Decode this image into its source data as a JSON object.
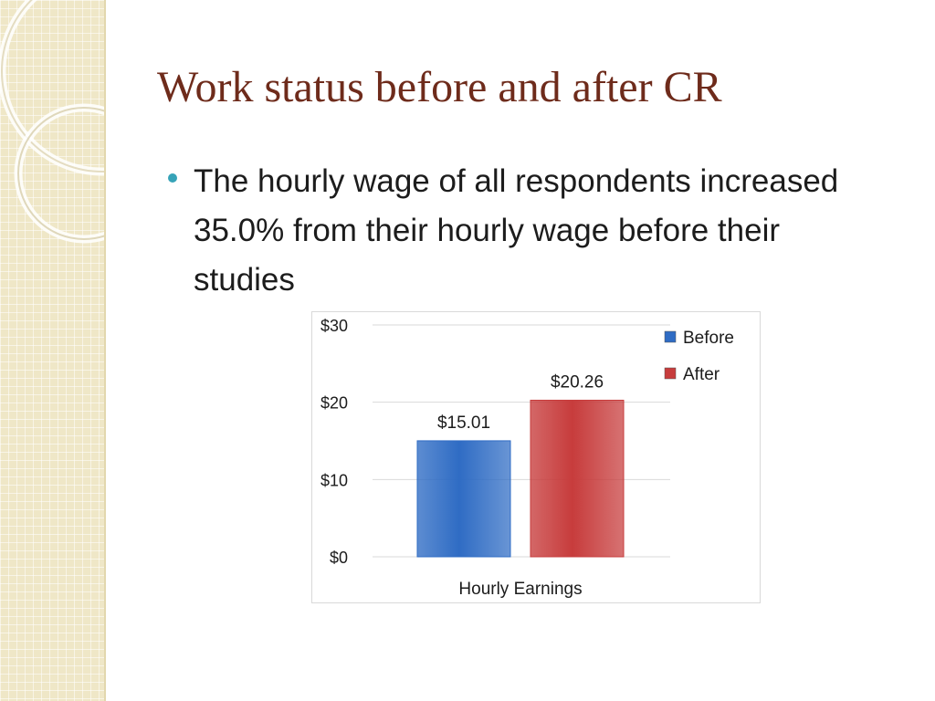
{
  "slide": {
    "title": "Work status before and after CR",
    "bullet": "The hourly wage of all respondents increased 35.0% from their hourly wage before their studies"
  },
  "colors": {
    "title": "#6e2b1b",
    "bullet_dot": "#36a3b8",
    "side_panel": "#efe7c7"
  },
  "chart_data": {
    "type": "bar",
    "categories": [
      "Hourly Earnings"
    ],
    "series": [
      {
        "name": "Before",
        "values": [
          15.01
        ],
        "labels": [
          "$15.01"
        ],
        "color": "#2f6cc4"
      },
      {
        "name": "After",
        "values": [
          20.26
        ],
        "labels": [
          "$20.26"
        ],
        "color": "#c73c3c"
      }
    ],
    "y_ticks": [
      {
        "value": 0,
        "label": "$0"
      },
      {
        "value": 10,
        "label": "$10"
      },
      {
        "value": 20,
        "label": "$20"
      },
      {
        "value": 30,
        "label": "$30"
      }
    ],
    "ylim": [
      0,
      30
    ],
    "grid": true,
    "legend": "top-right"
  }
}
